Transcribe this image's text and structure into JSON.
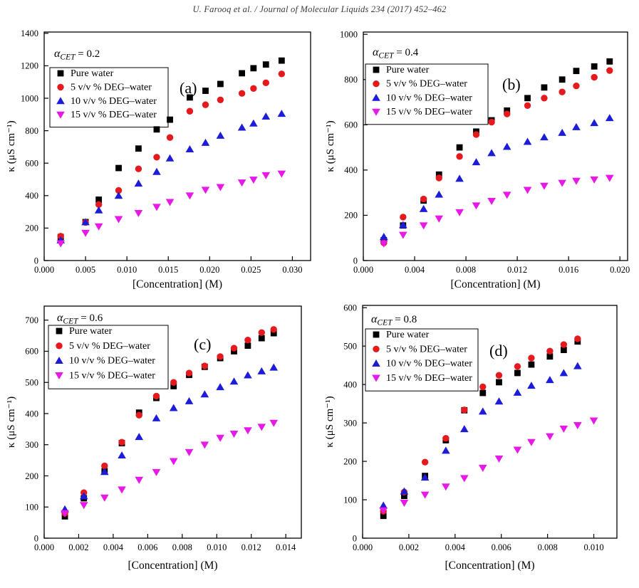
{
  "header": {
    "text": "U. Farooq et al. / Journal of Molecular Liquids 234 (2017) 452–462"
  },
  "chart_data": [
    {
      "id": "a",
      "type": "scatter",
      "panel_label": "(a)",
      "title": {
        "symbol": "α",
        "subscript": "CET",
        "value": "= 0.2"
      },
      "xlabel": "[Concentration] (M)",
      "ylabel": "κ (μS cm⁻¹)",
      "xlim": [
        0,
        0.0322
      ],
      "ylim": [
        0,
        1408
      ],
      "grid": false,
      "legend_position": "top-left-box",
      "xticks": {
        "values": [
          0,
          0.005,
          0.01,
          0.015,
          0.02,
          0.025,
          0.03
        ],
        "labels": [
          "0.000",
          "0.005",
          "0.010",
          "0.015",
          "0.020",
          "0.025",
          "0.030"
        ]
      },
      "yticks": {
        "values": [
          0,
          200,
          400,
          600,
          800,
          1000,
          1200,
          1400
        ],
        "labels": [
          "0",
          "200",
          "400",
          "600",
          "800",
          "1000",
          "1200",
          "1400"
        ]
      },
      "series": [
        {
          "name": "Pure water",
          "marker": "square",
          "color": "#000000",
          "x": [
            0.002,
            0.005,
            0.0066,
            0.009,
            0.0114,
            0.0136,
            0.0152,
            0.0176,
            0.0195,
            0.0213,
            0.0239,
            0.0253,
            0.0268,
            0.0287
          ],
          "y": [
            145,
            237,
            375,
            570,
            690,
            808,
            868,
            1005,
            1046,
            1088,
            1154,
            1185,
            1208,
            1232
          ]
        },
        {
          "name": "5 v/v % DEG–water",
          "marker": "circle",
          "color": "#e41a1f",
          "x": [
            0.002,
            0.005,
            0.0066,
            0.009,
            0.0114,
            0.0136,
            0.0152,
            0.0176,
            0.0195,
            0.0213,
            0.0239,
            0.0253,
            0.0268,
            0.0287
          ],
          "y": [
            150,
            235,
            345,
            432,
            565,
            637,
            758,
            920,
            960,
            990,
            1030,
            1060,
            1095,
            1150
          ]
        },
        {
          "name": "10 v/v % DEG–water",
          "marker": "triangle-up",
          "color": "#1d1dd8",
          "x": [
            0.002,
            0.005,
            0.0066,
            0.009,
            0.0114,
            0.0136,
            0.0152,
            0.0176,
            0.0195,
            0.0213,
            0.0239,
            0.0253,
            0.0268,
            0.0287
          ],
          "y": [
            125,
            237,
            310,
            400,
            475,
            547,
            630,
            686,
            726,
            770,
            820,
            845,
            888,
            905
          ]
        },
        {
          "name": "15 v/v % DEG–water",
          "marker": "triangle-down",
          "color": "#e619e6",
          "x": [
            0.002,
            0.005,
            0.0066,
            0.009,
            0.0114,
            0.0136,
            0.0152,
            0.0176,
            0.0195,
            0.0213,
            0.0239,
            0.0253,
            0.0268,
            0.0287
          ],
          "y": [
            105,
            170,
            210,
            255,
            292,
            330,
            360,
            400,
            435,
            452,
            480,
            498,
            525,
            535
          ]
        }
      ]
    },
    {
      "id": "b",
      "type": "scatter",
      "panel_label": "(b)",
      "title": {
        "symbol": "α",
        "subscript": "CET",
        "value": "= 0.4"
      },
      "xlabel": "[Concentration] (M)",
      "ylabel": "κ (μS cm⁻¹)",
      "xlim": [
        0,
        0.0206
      ],
      "ylim": [
        0,
        1010
      ],
      "grid": false,
      "legend_position": "top-left-box",
      "xticks": {
        "values": [
          0,
          0.004,
          0.008,
          0.012,
          0.016,
          0.02
        ],
        "labels": [
          "0.000",
          "0.004",
          "0.008",
          "0.012",
          "0.016",
          "0.020"
        ]
      },
      "yticks": {
        "values": [
          0,
          200,
          400,
          600,
          800,
          1000
        ],
        "labels": [
          "0",
          "200",
          "400",
          "600",
          "800",
          "1000"
        ]
      },
      "series": [
        {
          "name": "Pure water",
          "marker": "square",
          "color": "#000000",
          "x": [
            0.0016,
            0.0031,
            0.0047,
            0.0059,
            0.0075,
            0.0088,
            0.01,
            0.0112,
            0.0128,
            0.0141,
            0.0155,
            0.0166,
            0.018,
            0.0192
          ],
          "y": [
            90,
            155,
            265,
            380,
            500,
            570,
            620,
            663,
            718,
            765,
            800,
            838,
            858,
            880
          ]
        },
        {
          "name": "5 v/v % DEG–water",
          "marker": "circle",
          "color": "#e41a1f",
          "x": [
            0.0016,
            0.0031,
            0.0047,
            0.0059,
            0.0075,
            0.0088,
            0.01,
            0.0112,
            0.0128,
            0.0141,
            0.0155,
            0.0166,
            0.018,
            0.0192
          ],
          "y": [
            78,
            192,
            272,
            365,
            460,
            557,
            612,
            648,
            685,
            718,
            745,
            772,
            810,
            840
          ]
        },
        {
          "name": "10 v/v % DEG–water",
          "marker": "triangle-up",
          "color": "#1d1dd8",
          "x": [
            0.0016,
            0.0031,
            0.0047,
            0.0059,
            0.0075,
            0.0088,
            0.01,
            0.0112,
            0.0128,
            0.0141,
            0.0155,
            0.0166,
            0.018,
            0.0192
          ],
          "y": [
            105,
            157,
            228,
            292,
            362,
            435,
            475,
            503,
            525,
            545,
            565,
            590,
            608,
            630
          ]
        },
        {
          "name": "15 v/v % DEG–water",
          "marker": "triangle-down",
          "color": "#e619e6",
          "x": [
            0.0016,
            0.0031,
            0.0047,
            0.0059,
            0.0075,
            0.0088,
            0.01,
            0.0112,
            0.0128,
            0.0141,
            0.0155,
            0.0166,
            0.018,
            0.0192
          ],
          "y": [
            75,
            113,
            155,
            185,
            213,
            243,
            263,
            290,
            312,
            330,
            343,
            352,
            358,
            365
          ]
        }
      ]
    },
    {
      "id": "c",
      "type": "scatter",
      "panel_label": "(c)",
      "title": {
        "symbol": "α",
        "subscript": "CET",
        "value": "= 0.6"
      },
      "xlabel": "[Concentration] (M)",
      "ylabel": "κ (μS cm⁻¹)",
      "xlim": [
        0,
        0.0149
      ],
      "ylim": [
        0,
        745
      ],
      "grid": false,
      "legend_position": "top-left-box",
      "xticks": {
        "values": [
          0,
          0.002,
          0.004,
          0.006,
          0.008,
          0.01,
          0.012,
          0.014
        ],
        "labels": [
          "0.000",
          "0.002",
          "0.004",
          "0.006",
          "0.008",
          "0.010",
          "0.012",
          "0.014"
        ]
      },
      "yticks": {
        "values": [
          0,
          100,
          200,
          300,
          400,
          500,
          600,
          700
        ],
        "labels": [
          "0",
          "100",
          "200",
          "300",
          "400",
          "500",
          "600",
          "700"
        ]
      },
      "series": [
        {
          "name": "Pure water",
          "marker": "square",
          "color": "#000000",
          "x": [
            0.0012,
            0.0023,
            0.0035,
            0.0045,
            0.0055,
            0.0065,
            0.0075,
            0.0084,
            0.0093,
            0.0102,
            0.011,
            0.0118,
            0.0126,
            0.0133
          ],
          "y": [
            70,
            128,
            215,
            305,
            403,
            450,
            488,
            524,
            550,
            578,
            600,
            618,
            642,
            658
          ]
        },
        {
          "name": "5 v/v % DEG–water",
          "marker": "circle",
          "color": "#e41a1f",
          "x": [
            0.0012,
            0.0023,
            0.0035,
            0.0045,
            0.0055,
            0.0065,
            0.0075,
            0.0084,
            0.0093,
            0.0102,
            0.011,
            0.0118,
            0.0126,
            0.0133
          ],
          "y": [
            80,
            146,
            232,
            308,
            395,
            456,
            500,
            530,
            553,
            583,
            610,
            636,
            660,
            670
          ]
        },
        {
          "name": "10 v/v % DEG–water",
          "marker": "triangle-up",
          "color": "#1d1dd8",
          "x": [
            0.0012,
            0.0023,
            0.0035,
            0.0045,
            0.0055,
            0.0065,
            0.0075,
            0.0084,
            0.0093,
            0.0102,
            0.011,
            0.0118,
            0.0126,
            0.0133
          ],
          "y": [
            93,
            135,
            213,
            266,
            325,
            385,
            418,
            440,
            462,
            485,
            503,
            523,
            536,
            548
          ]
        },
        {
          "name": "15 v/v % DEG–water",
          "marker": "triangle-down",
          "color": "#e619e6",
          "x": [
            0.0012,
            0.0023,
            0.0035,
            0.0045,
            0.0055,
            0.0065,
            0.0075,
            0.0084,
            0.0093,
            0.0102,
            0.011,
            0.0118,
            0.0126,
            0.0133
          ],
          "y": [
            80,
            106,
            130,
            156,
            187,
            212,
            247,
            276,
            300,
            322,
            335,
            346,
            357,
            370
          ]
        }
      ]
    },
    {
      "id": "d",
      "type": "scatter",
      "panel_label": "(d)",
      "title": {
        "symbol": "α",
        "subscript": "CET",
        "value": "= 0.8"
      },
      "xlabel": "[Concentration] (M)",
      "ylabel": "κ (μS cm⁻¹)",
      "xlim": [
        0,
        0.011
      ],
      "ylim": [
        0,
        606
      ],
      "grid": false,
      "legend_position": "top-left-box",
      "xticks": {
        "values": [
          0,
          0.002,
          0.004,
          0.006,
          0.008,
          0.01
        ],
        "labels": [
          "0.000",
          "0.002",
          "0.004",
          "0.006",
          "0.008",
          "0.010"
        ]
      },
      "yticks": {
        "values": [
          0,
          100,
          200,
          300,
          400,
          500,
          600
        ],
        "labels": [
          "0",
          "100",
          "200",
          "300",
          "400",
          "500",
          "600"
        ]
      },
      "series": [
        {
          "name": "Pure water",
          "marker": "square",
          "color": "#000000",
          "x": [
            0.0009,
            0.0018,
            0.0027,
            0.0036,
            0.0044,
            0.0052,
            0.0059,
            0.0067,
            0.0073,
            0.0081,
            0.0087,
            0.0093
          ],
          "y": [
            58,
            110,
            162,
            255,
            333,
            378,
            406,
            430,
            452,
            473,
            490,
            512
          ]
        },
        {
          "name": "5 v/v % DEG–water",
          "marker": "circle",
          "color": "#e41a1f",
          "x": [
            0.0009,
            0.0018,
            0.0027,
            0.0036,
            0.0044,
            0.0052,
            0.0059,
            0.0067,
            0.0073,
            0.0081,
            0.0087,
            0.0093
          ],
          "y": [
            70,
            120,
            198,
            260,
            334,
            394,
            424,
            447,
            469,
            487,
            504,
            519
          ]
        },
        {
          "name": "10 v/v % DEG–water",
          "marker": "triangle-up",
          "color": "#1d1dd8",
          "x": [
            0.0009,
            0.0018,
            0.0027,
            0.0036,
            0.0044,
            0.0052,
            0.0059,
            0.0067,
            0.0073,
            0.0081,
            0.0087,
            0.0093
          ],
          "y": [
            85,
            122,
            158,
            228,
            284,
            330,
            356,
            379,
            397,
            412,
            430,
            448
          ]
        },
        {
          "name": "15 v/v % DEG–water",
          "marker": "triangle-down",
          "color": "#e619e6",
          "x": [
            0.0009,
            0.0018,
            0.0027,
            0.0036,
            0.0044,
            0.0052,
            0.0059,
            0.0067,
            0.0073,
            0.0081,
            0.0087,
            0.0093,
            0.01
          ],
          "y": [
            72,
            92,
            113,
            134,
            156,
            183,
            207,
            230,
            250,
            265,
            285,
            294,
            306
          ]
        }
      ]
    }
  ]
}
